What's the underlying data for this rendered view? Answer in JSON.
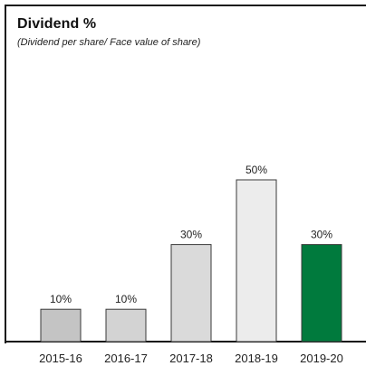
{
  "chart_data": {
    "type": "bar",
    "title": "Dividend %",
    "subtitle": "(Dividend per share/ Face value of share)",
    "categories": [
      "2015-16",
      "2016-17",
      "2017-18",
      "2018-19",
      "2019-20"
    ],
    "values": [
      10,
      10,
      30,
      50,
      30
    ],
    "value_labels": [
      "10%",
      "10%",
      "30%",
      "50%",
      "30%"
    ],
    "bar_colors": [
      "#c4c4c4",
      "#d3d3d3",
      "#dadada",
      "#ececec",
      "#007a3d"
    ],
    "ylim": [
      0,
      50
    ],
    "grid": false,
    "legend": "none"
  }
}
